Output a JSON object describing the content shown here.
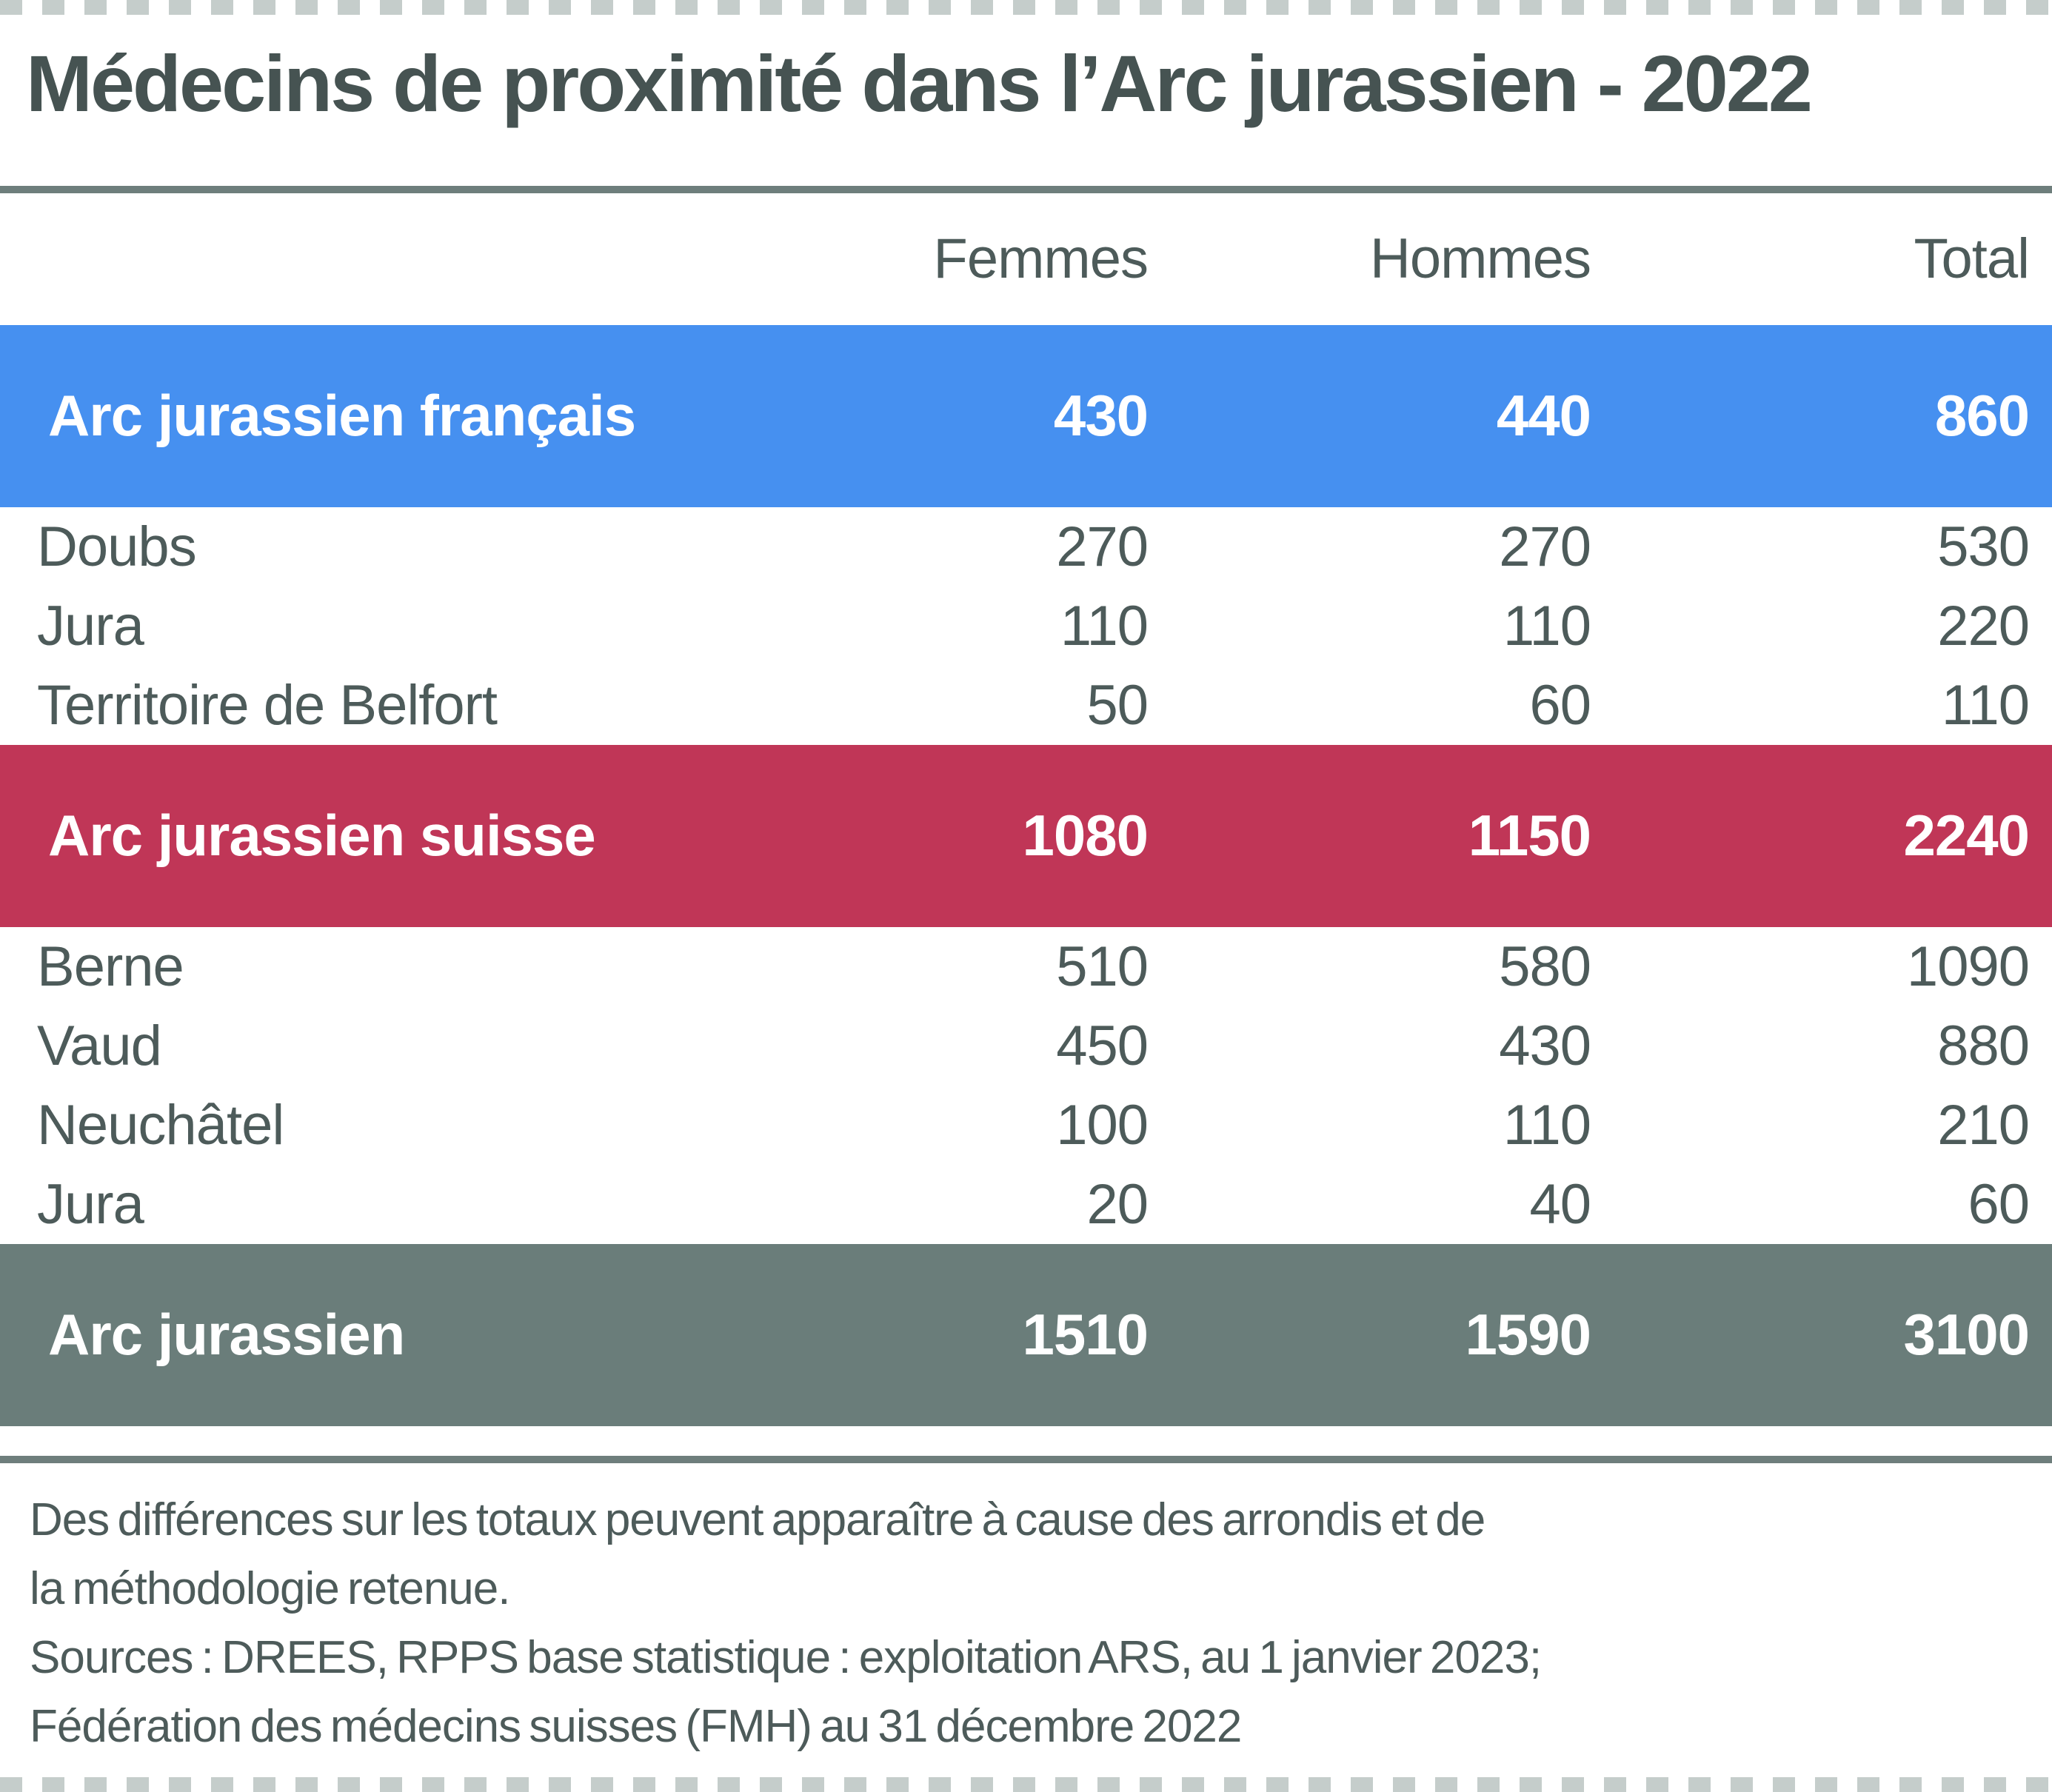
{
  "chart_data": {
    "type": "table",
    "title": "Médecins de proximité dans l’Arc jurassien - 2022",
    "columns": [
      "Femmes",
      "Hommes",
      "Total"
    ],
    "rows": [
      {
        "label": "Arc jurassien français",
        "kind": "section",
        "values": [
          430,
          440,
          860
        ]
      },
      {
        "label": "Doubs",
        "kind": "detail",
        "values": [
          270,
          270,
          530
        ]
      },
      {
        "label": "Jura",
        "kind": "detail",
        "values": [
          110,
          110,
          220
        ]
      },
      {
        "label": "Territoire de Belfort",
        "kind": "detail",
        "values": [
          50,
          60,
          110
        ]
      },
      {
        "label": "Arc jurassien suisse",
        "kind": "section",
        "values": [
          1080,
          1150,
          2240
        ]
      },
      {
        "label": "Berne",
        "kind": "detail",
        "values": [
          510,
          580,
          1090
        ]
      },
      {
        "label": "Vaud",
        "kind": "detail",
        "values": [
          450,
          430,
          880
        ]
      },
      {
        "label": "Neuchâtel",
        "kind": "detail",
        "values": [
          100,
          110,
          210
        ]
      },
      {
        "label": "Jura",
        "kind": "detail",
        "values": [
          20,
          40,
          60
        ]
      },
      {
        "label": "Arc jurassien",
        "kind": "section",
        "values": [
          1510,
          1590,
          3100
        ]
      }
    ],
    "legend_position": "none",
    "grid": false
  },
  "notes": {
    "lines": [
      "Des différences sur les totaux peuvent apparaître à cause des arrondis et de",
      "la méthodologie retenue.",
      "Sources : DREES, RPPS base statistique : exploitation ARS, au 1 janvier 2023;",
      "Fédération des médecins suisses (FMH) au 31 décembre 2022"
    ]
  },
  "colors": {
    "section_blue": "#4690F0",
    "section_red": "#C03657",
    "section_gray": "#6A7D7A",
    "band_text": "#FFFFFF",
    "body_text": "#4D5B5A",
    "title_text": "#465352",
    "rule": "#6E7E7C",
    "dash": "#C5CDCB",
    "background": "#FFFFFF"
  }
}
